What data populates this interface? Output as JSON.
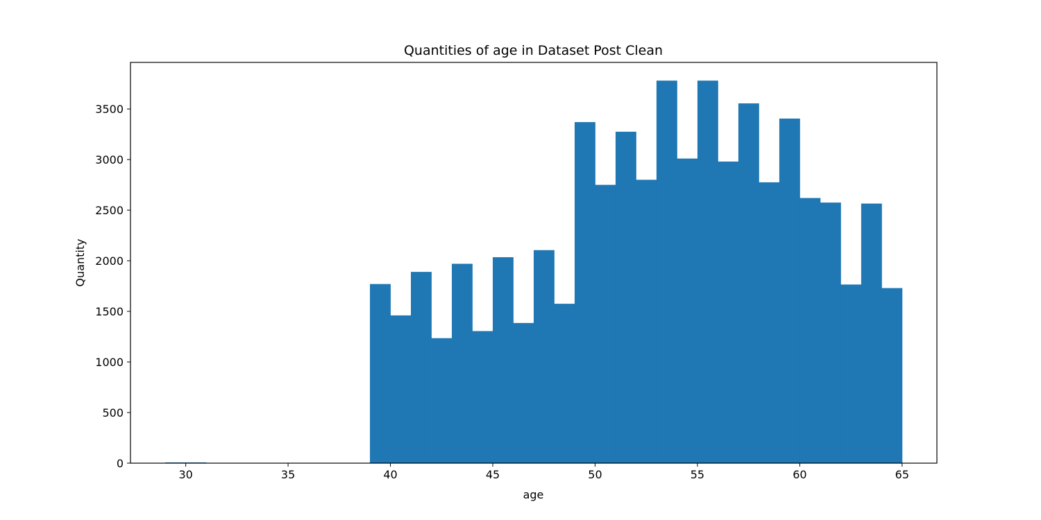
{
  "chart_data": {
    "type": "bar",
    "title": "Quantities of age in Dataset Post Clean",
    "xlabel": "age",
    "ylabel": "Quantity",
    "xlim": [
      27.3,
      66.7
    ],
    "ylim": [
      0,
      3960
    ],
    "xticks": [
      30,
      35,
      40,
      45,
      50,
      55,
      60,
      65
    ],
    "yticks": [
      0,
      500,
      1000,
      1500,
      2000,
      2500,
      3000,
      3500
    ],
    "grid": false,
    "color": "#1f77b4",
    "bins": [
      {
        "x0": 29,
        "x1": 31,
        "value": 7
      },
      {
        "x0": 39,
        "x1": 40,
        "value": 1770
      },
      {
        "x0": 40,
        "x1": 41,
        "value": 1460
      },
      {
        "x0": 41,
        "x1": 42,
        "value": 1890
      },
      {
        "x0": 42,
        "x1": 43,
        "value": 1235
      },
      {
        "x0": 43,
        "x1": 44,
        "value": 1970
      },
      {
        "x0": 44,
        "x1": 45,
        "value": 1305
      },
      {
        "x0": 45,
        "x1": 46,
        "value": 2035
      },
      {
        "x0": 46,
        "x1": 47,
        "value": 1385
      },
      {
        "x0": 47,
        "x1": 48,
        "value": 2105
      },
      {
        "x0": 48,
        "x1": 49,
        "value": 1575
      },
      {
        "x0": 49,
        "x1": 50,
        "value": 3370
      },
      {
        "x0": 50,
        "x1": 51,
        "value": 2750
      },
      {
        "x0": 51,
        "x1": 52,
        "value": 3275
      },
      {
        "x0": 52,
        "x1": 53,
        "value": 2800
      },
      {
        "x0": 53,
        "x1": 54,
        "value": 3780
      },
      {
        "x0": 54,
        "x1": 55,
        "value": 3010
      },
      {
        "x0": 55,
        "x1": 56,
        "value": 3780
      },
      {
        "x0": 56,
        "x1": 57,
        "value": 2980
      },
      {
        "x0": 57,
        "x1": 58,
        "value": 3555
      },
      {
        "x0": 58,
        "x1": 59,
        "value": 2775
      },
      {
        "x0": 59,
        "x1": 60,
        "value": 3405
      },
      {
        "x0": 60,
        "x1": 61,
        "value": 2620
      },
      {
        "x0": 61,
        "x1": 62,
        "value": 2575
      },
      {
        "x0": 62,
        "x1": 63,
        "value": 1765
      },
      {
        "x0": 63,
        "x1": 64,
        "value": 2565
      },
      {
        "x0": 64,
        "x1": 65,
        "value": 1730
      }
    ]
  }
}
